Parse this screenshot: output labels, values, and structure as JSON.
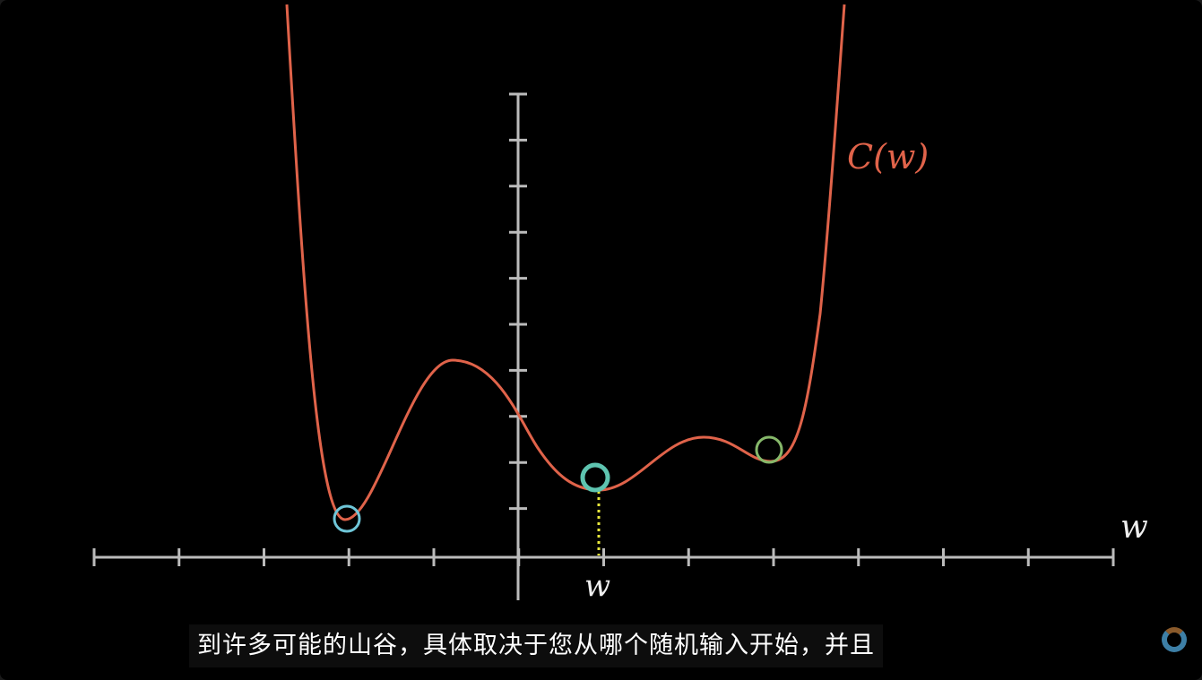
{
  "video": {
    "curve_label": "C(w)",
    "axis_label": "w",
    "marker_label": "w",
    "subtitle": "到许多可能的山谷，具体取决于您从哪个随机输入开始，并且",
    "colors": {
      "curve": "#e0634a",
      "axis": "#bbbbbb",
      "ball_left": "#6fc6d8",
      "ball_mid": "#5ec4b0",
      "ball_right": "#86b86a",
      "dotted": "#e8e83c"
    }
  },
  "player": {
    "loading_icon": "spinner-icon"
  }
}
